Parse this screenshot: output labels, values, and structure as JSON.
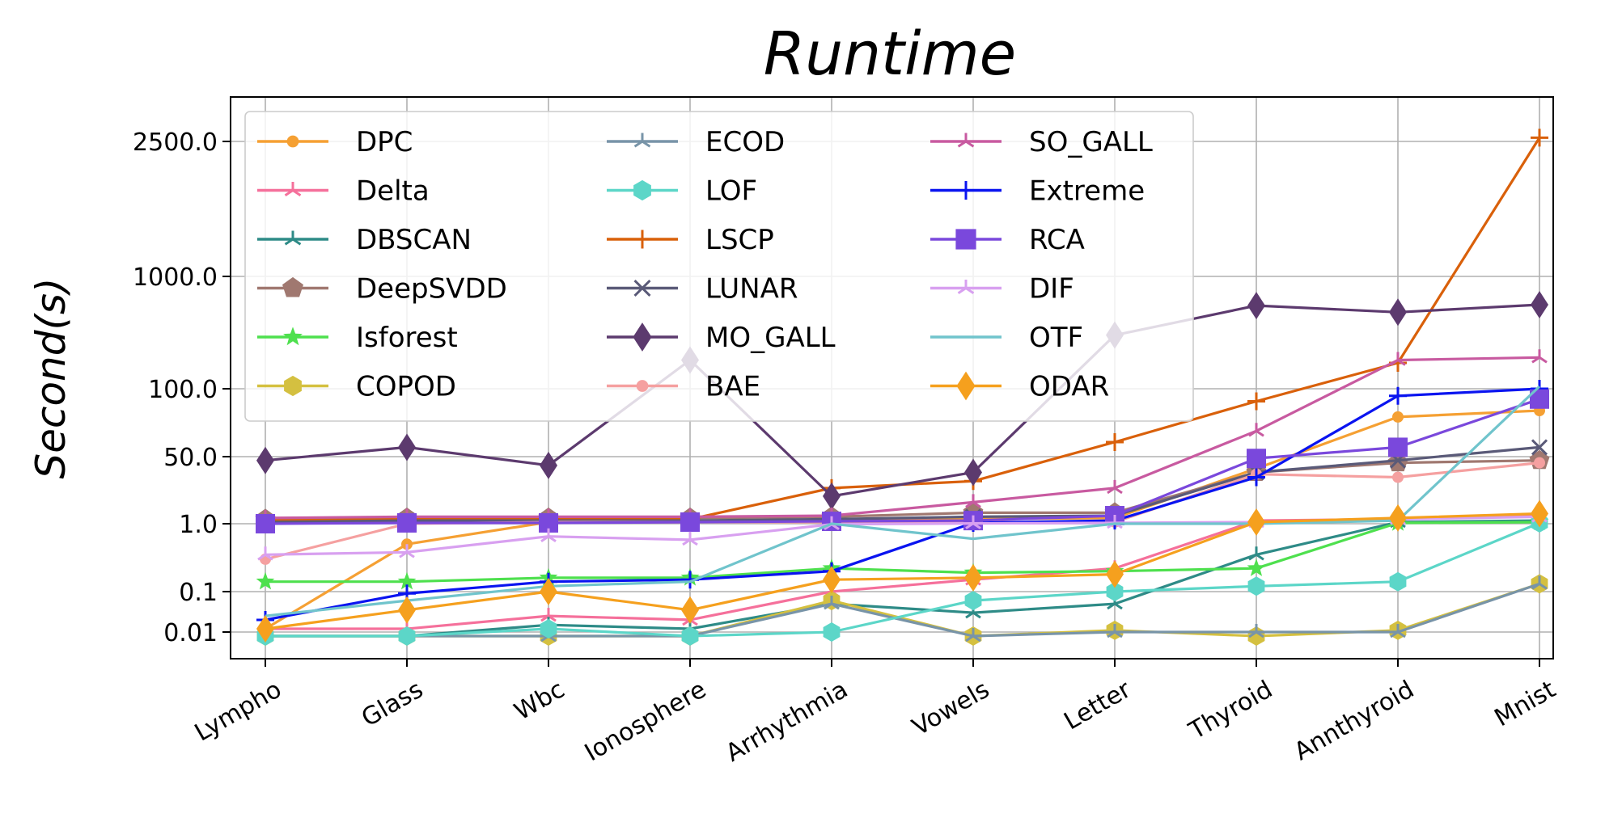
{
  "chart_data": {
    "type": "line",
    "title": "Runtime",
    "xlabel": "",
    "ylabel": "Second(s)",
    "categories": [
      "Lympho",
      "Glass",
      "Wbc",
      "Ionosphere",
      "Arrhythmia",
      "Vowels",
      "Letter",
      "Thyroid",
      "Annthyroid",
      "Mnist"
    ],
    "yticks": [
      0.01,
      0.1,
      1.0,
      50.0,
      100.0,
      1000.0,
      2500.0
    ],
    "ytick_labels": [
      "0.01",
      "0.1",
      "1.0",
      "50.0",
      "100.0",
      "1000.0",
      "2500.0"
    ],
    "grid": true,
    "legend_position": "top-left",
    "legend_columns": 3,
    "series": [
      {
        "name": "DPC",
        "color": "#f5a033",
        "marker": "circle",
        "values": [
          0.012,
          0.5,
          1.1,
          1.1,
          1.2,
          1.3,
          1.4,
          25,
          75,
          80
        ]
      },
      {
        "name": "Delta",
        "color": "#f5709b",
        "marker": "tri",
        "values": [
          0.012,
          0.012,
          0.025,
          0.02,
          0.1,
          0.15,
          0.22,
          1.2,
          1.3,
          1.6
        ]
      },
      {
        "name": "DBSCAN",
        "color": "#2e8b87",
        "marker": "tri",
        "values": [
          0.009,
          0.009,
          0.015,
          0.012,
          0.05,
          0.03,
          0.05,
          0.35,
          1.1,
          1.2
        ]
      },
      {
        "name": "DeepSVDD",
        "color": "#a07870",
        "marker": "pentagon",
        "values": [
          1.3,
          1.4,
          1.4,
          1.4,
          1.5,
          1.9,
          1.9,
          20,
          35,
          40
        ]
      },
      {
        "name": "Isforest",
        "color": "#4ee04e",
        "marker": "star",
        "values": [
          0.14,
          0.14,
          0.16,
          0.16,
          0.22,
          0.19,
          0.2,
          0.22,
          1.05,
          1.1
        ]
      },
      {
        "name": "COPOD",
        "color": "#d4c040",
        "marker": "hexagon",
        "values": [
          0.009,
          0.009,
          0.009,
          0.009,
          0.06,
          0.009,
          0.011,
          0.009,
          0.011,
          0.13
        ]
      },
      {
        "name": "ECOD",
        "color": "#7894a8",
        "marker": "tri",
        "values": [
          0.009,
          0.009,
          0.009,
          0.009,
          0.05,
          0.009,
          0.01,
          0.01,
          0.01,
          0.13
        ]
      },
      {
        "name": "LOF",
        "color": "#5cd6c8",
        "marker": "hexagon",
        "values": [
          0.009,
          0.009,
          0.012,
          0.009,
          0.01,
          0.06,
          0.1,
          0.12,
          0.14,
          1.05
        ]
      },
      {
        "name": "LSCP",
        "color": "#d9600a",
        "marker": "plus",
        "values": [
          1.2,
          1.3,
          1.3,
          1.3,
          8,
          12,
          58,
          88,
          170,
          2600
        ]
      },
      {
        "name": "LUNAR",
        "color": "#5a5a78",
        "marker": "x",
        "values": [
          1.1,
          1.2,
          1.2,
          1.2,
          1.3,
          1.5,
          1.6,
          20,
          40,
          55
        ]
      },
      {
        "name": "MO_GALL",
        "color": "#5c3a6e",
        "marker": "diamond",
        "values": [
          40,
          55,
          30,
          180,
          5,
          20,
          300,
          550,
          480,
          560
        ]
      },
      {
        "name": "BAE",
        "color": "#f5a0a0",
        "marker": "circle",
        "values": [
          0.3,
          1.0,
          1.1,
          1.1,
          1.1,
          1.1,
          1.1,
          18,
          15,
          35
        ]
      },
      {
        "name": "SO_GALL",
        "color": "#c85aa0",
        "marker": "tri",
        "values": [
          1.4,
          1.5,
          1.5,
          1.5,
          1.6,
          3.5,
          8,
          65,
          180,
          190
        ]
      },
      {
        "name": "Extreme",
        "color": "#0a14f0",
        "marker": "plus",
        "values": [
          0.02,
          0.09,
          0.14,
          0.15,
          0.2,
          1.05,
          1.2,
          15,
          93,
          100
        ]
      },
      {
        "name": "RCA",
        "color": "#7a48dc",
        "marker": "square",
        "values": [
          1.0,
          1.05,
          1.05,
          1.1,
          1.15,
          1.2,
          1.6,
          45,
          55,
          90
        ]
      },
      {
        "name": "DIF",
        "color": "#d8a0f0",
        "marker": "tri",
        "values": [
          0.35,
          0.38,
          0.65,
          0.58,
          0.98,
          1.02,
          1.05,
          1.1,
          1.3,
          1.5
        ]
      },
      {
        "name": "OTF",
        "color": "#70c4cc",
        "marker": "none",
        "values": [
          0.025,
          0.06,
          0.12,
          0.14,
          1.0,
          0.6,
          1.0,
          1.0,
          1.2,
          105
        ]
      },
      {
        "name": "ODAR",
        "color": "#f5a01e",
        "marker": "diamond",
        "values": [
          0.012,
          0.035,
          0.1,
          0.035,
          0.15,
          0.16,
          0.18,
          1.1,
          1.4,
          1.8
        ]
      }
    ]
  }
}
